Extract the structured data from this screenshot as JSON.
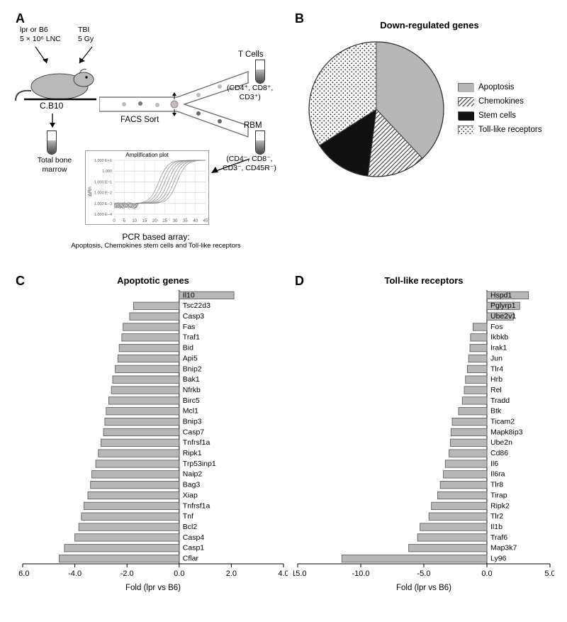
{
  "colors": {
    "bar_fill": "#b7b7b7",
    "bar_stroke": "#555555",
    "grid": "#bfbfbf"
  },
  "labels": {
    "A": "A",
    "B": "B",
    "C": "C",
    "D": "D"
  },
  "panelA": {
    "input1_l1": "lpr or B6",
    "input1_l2": "5 × 10⁶ LNC",
    "input2_l1": "TBI",
    "input2_l2": "5 Gy",
    "mouse_name": "C.B10",
    "tbm": "Total bone\nmarrow",
    "facs": "FACS Sort",
    "t_cells": "T Cells",
    "t_markers": "(CD4⁺, CD8⁺,\nCD3⁺)",
    "rbm": "RBM",
    "rbm_markers": "(CD4⁻, CD8⁻,\nCD3⁻, CD45R⁻)",
    "amp_title": "Amplification plot",
    "amp_y": "ΔRn",
    "amp_x": "Cycle",
    "amp_yticks": [
      "1.000 E+1",
      "1.000",
      "1.000 E−1",
      "1.000 E−2",
      "1.000 E−3",
      "1.000 E−4"
    ],
    "amp_xticks": [
      "0",
      "5",
      "10",
      "15",
      "20",
      "25",
      "30",
      "35",
      "40",
      "45"
    ],
    "pcr_t1": "PCR based array:",
    "pcr_t2": "Apoptosis, Chemokines stem cells and Toll-like receptors"
  },
  "panelB": {
    "title": "Down-regulated genes",
    "slices": [
      {
        "label": "Apoptosis",
        "pct": 38,
        "fill": "#b7b7b7"
      },
      {
        "label": "Chemokines",
        "pct": 14,
        "fill": "url(#hatch)"
      },
      {
        "label": "Stem cells",
        "pct": 14,
        "fill": "#111111"
      },
      {
        "label": "Toll-like receptors",
        "pct": 34,
        "fill": "url(#dots)"
      }
    ]
  },
  "panelC": {
    "title": "Apoptotic genes",
    "xlabel": "Fold (lpr vs B6)",
    "xlim": [
      -6,
      4
    ],
    "xticks": [
      -6,
      -4,
      -2,
      0,
      2,
      4
    ],
    "bars": [
      {
        "name": "Il10",
        "v": 2.1
      },
      {
        "name": "Tsc22d3",
        "v": -1.75
      },
      {
        "name": "Casp3",
        "v": -1.9
      },
      {
        "name": "Fas",
        "v": -2.15
      },
      {
        "name": "Traf1",
        "v": -2.2
      },
      {
        "name": "Bid",
        "v": -2.3
      },
      {
        "name": "Api5",
        "v": -2.35
      },
      {
        "name": "Bnip2",
        "v": -2.45
      },
      {
        "name": "Bak1",
        "v": -2.55
      },
      {
        "name": "Nfrkb",
        "v": -2.6
      },
      {
        "name": "Birc5",
        "v": -2.7
      },
      {
        "name": "Mcl1",
        "v": -2.8
      },
      {
        "name": "Bnip3",
        "v": -2.85
      },
      {
        "name": "Casp7",
        "v": -2.9
      },
      {
        "name": "Tnfrsf1a",
        "v": -3.0
      },
      {
        "name": "Ripk1",
        "v": -3.1
      },
      {
        "name": "Trp53inp1",
        "v": -3.2
      },
      {
        "name": "Naip2",
        "v": -3.35
      },
      {
        "name": "Bag3",
        "v": -3.4
      },
      {
        "name": "Xiap",
        "v": -3.5
      },
      {
        "name": "Tnfrsf1a",
        "v": -3.65
      },
      {
        "name": "Tnf",
        "v": -3.75
      },
      {
        "name": "Bcl2",
        "v": -3.85
      },
      {
        "name": "Casp4",
        "v": -4.0
      },
      {
        "name": "Casp1",
        "v": -4.4
      },
      {
        "name": "Cflar",
        "v": -4.6
      }
    ]
  },
  "panelD": {
    "title": "Toll-like receptors",
    "xlabel": "Fold (lpr vs B6)",
    "xlim": [
      -15,
      5
    ],
    "xticks": [
      -15,
      -10,
      -5,
      0,
      5
    ],
    "bars": [
      {
        "name": "Hspd1",
        "v": 3.3
      },
      {
        "name": "Pglyrp1",
        "v": 2.6
      },
      {
        "name": "Ube2v1",
        "v": 2.1
      },
      {
        "name": "Fos",
        "v": -1.1
      },
      {
        "name": "Ikbkb",
        "v": -1.3
      },
      {
        "name": "Irak1",
        "v": -1.35
      },
      {
        "name": "Jun",
        "v": -1.45
      },
      {
        "name": "Tlr4",
        "v": -1.55
      },
      {
        "name": "Hrb",
        "v": -1.7
      },
      {
        "name": "Rel",
        "v": -1.8
      },
      {
        "name": "Tradd",
        "v": -1.95
      },
      {
        "name": "Btk",
        "v": -2.25
      },
      {
        "name": "Ticam2",
        "v": -2.75
      },
      {
        "name": "Mapk8ip3",
        "v": -2.85
      },
      {
        "name": "Ube2n",
        "v": -2.9
      },
      {
        "name": "Cd86",
        "v": -3.0
      },
      {
        "name": "Il6",
        "v": -3.3
      },
      {
        "name": "Il6ra",
        "v": -3.45
      },
      {
        "name": "Tlr8",
        "v": -3.7
      },
      {
        "name": "Tirap",
        "v": -3.9
      },
      {
        "name": "Ripk2",
        "v": -4.4
      },
      {
        "name": "Tlr2",
        "v": -4.6
      },
      {
        "name": "Il1b",
        "v": -5.3
      },
      {
        "name": "Traf6",
        "v": -5.5
      },
      {
        "name": "Map3k7",
        "v": -6.2
      },
      {
        "name": "Ly96",
        "v": -11.5
      }
    ]
  }
}
